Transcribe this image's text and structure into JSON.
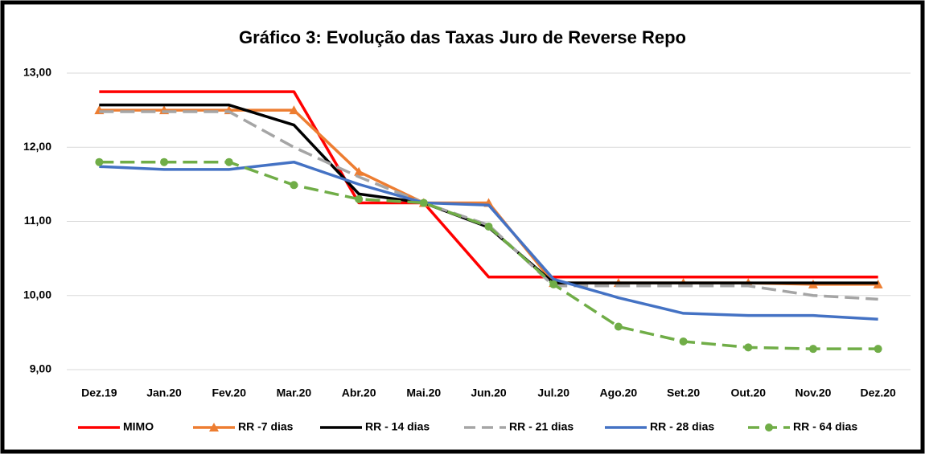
{
  "chart_data": {
    "type": "line",
    "title": "Gráfico 3: Evolução das Taxas Juro de Reverse Repo",
    "categories": [
      "Dez.19",
      "Jan.20",
      "Fev.20",
      "Mar.20",
      "Abr.20",
      "Mai.20",
      "Jun.20",
      "Jul.20",
      "Ago.20",
      "Set.20",
      "Out.20",
      "Nov.20",
      "Dez.20"
    ],
    "ylim": [
      9,
      13
    ],
    "yticks": [
      {
        "value": 9,
        "label": "9,00"
      },
      {
        "value": 10,
        "label": "10,00"
      },
      {
        "value": 11,
        "label": "11,00"
      },
      {
        "value": 12,
        "label": "12,00"
      },
      {
        "value": 13,
        "label": "13,00"
      }
    ],
    "grid": true,
    "legend": "bottom",
    "series": [
      {
        "name": "MIMO",
        "color": "#ff0000",
        "values": [
          12.75,
          12.75,
          12.75,
          12.75,
          11.25,
          11.25,
          10.25,
          10.25,
          10.25,
          10.25,
          10.25,
          10.25,
          10.25
        ]
      },
      {
        "name": "RR -7 dias",
        "color": "#ed7d31",
        "marker": "triangle",
        "values": [
          12.5,
          12.5,
          12.5,
          12.5,
          11.67,
          11.25,
          11.25,
          10.17,
          10.17,
          10.17,
          10.17,
          10.15,
          10.15
        ]
      },
      {
        "name": "RR - 14 dias",
        "color": "#000000",
        "values": [
          12.57,
          12.57,
          12.57,
          12.3,
          11.37,
          11.25,
          10.92,
          10.17,
          10.17,
          10.17,
          10.17,
          10.17,
          10.17
        ]
      },
      {
        "name": "RR - 21 dias",
        "color": "#a5a5a5",
        "dash": true,
        "values": [
          12.48,
          12.48,
          12.48,
          12.0,
          11.6,
          11.25,
          10.95,
          10.13,
          10.13,
          10.13,
          10.13,
          10.0,
          9.95
        ]
      },
      {
        "name": "RR - 28 dias",
        "color": "#4472c4",
        "values": [
          11.74,
          11.7,
          11.7,
          11.8,
          11.5,
          11.25,
          11.22,
          10.22,
          9.97,
          9.76,
          9.73,
          9.73,
          9.68
        ]
      },
      {
        "name": "RR - 64  dias",
        "color": "#70ad47",
        "dash": true,
        "marker": "circle",
        "values": [
          11.8,
          11.8,
          11.8,
          11.49,
          11.3,
          11.25,
          10.93,
          10.15,
          9.58,
          9.38,
          9.3,
          9.28,
          9.28
        ]
      }
    ]
  }
}
